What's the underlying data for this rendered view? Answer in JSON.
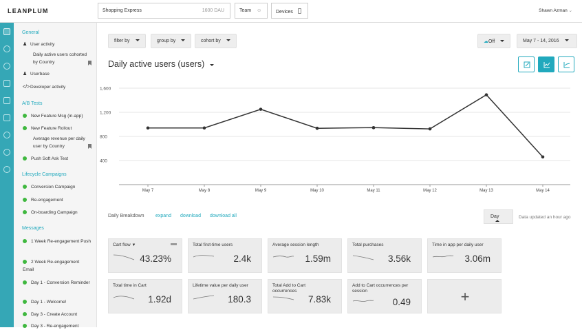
{
  "topbar": {
    "logo": "LEANPLUM",
    "app_name": "Shopping Express",
    "app_dau": "1600 DAU",
    "team_label": "Team",
    "devices_label": "Devices",
    "user_name": "Shawn Azman"
  },
  "sidebar": {
    "general": "General",
    "user_activity": "User activity",
    "user_activity_sub": "Daily active users cohorted by Country",
    "userbase": "Userbase",
    "developer_activity": "Developer activity",
    "ab_tests": "A/B Tests",
    "ab_items": [
      "New Feature Msg (in-app)",
      "New Feature Rollout"
    ],
    "ab_sub": "Average revenue per daily user by Country",
    "push_soft": "Push Soft Ask Test",
    "lifecycle": "Lifecycle Campaigns",
    "lifecycle_items": [
      "Conversion Campaign",
      "Re-engagement",
      "On-boarding Campaign"
    ],
    "messages": "Messages",
    "message_items": [
      "1 Week Re-engagement Push",
      "2 Week Re-engagement Email",
      "Day 1 - Conversion Reminder",
      "Day 1 - Welcome!",
      "Day 3 - Create Account",
      "Day 3 - Re-engagement"
    ]
  },
  "filters": {
    "filter_by": "filter by",
    "group_by": "group by",
    "cohort_by": "cohort by",
    "off_label": "Off",
    "date_range": "May 7 - 14, 2016"
  },
  "page_title": "Daily active users (users)",
  "chart_data": {
    "type": "line",
    "title": "Daily active users (users)",
    "categories": [
      "May 7",
      "May 8",
      "May 9",
      "May 10",
      "May 11",
      "May 12",
      "May 13",
      "May 14"
    ],
    "values": [
      940,
      940,
      1250,
      935,
      945,
      925,
      1490,
      460
    ],
    "yticks": [
      "1,600",
      "1,200",
      "800",
      "400"
    ],
    "ylim": [
      0,
      1600
    ],
    "grid": true,
    "color": "#333333"
  },
  "breakdown": {
    "label": "Daily Breakdown",
    "expand": "expand",
    "download": "download",
    "download_all": "download all",
    "day_label": "Day",
    "updated": "Data updated an hour ago"
  },
  "cards": [
    {
      "label": "Cart flow",
      "value": "43.23%"
    },
    {
      "label": "Total first-time users",
      "value": "2.4k"
    },
    {
      "label": "Average session length",
      "value": "1.59m"
    },
    {
      "label": "Total purchases",
      "value": "3.56k"
    },
    {
      "label": "Time in app per daily user",
      "value": "3.06m"
    },
    {
      "label": "Total time in Cart",
      "value": "1.92d"
    },
    {
      "label": "Lifetime value per daily user",
      "value": "180.3"
    },
    {
      "label": "Total Add to Cart occurrences",
      "value": "7.83k"
    },
    {
      "label": "Add to Cart occurrences per session",
      "value": "0.49"
    }
  ],
  "add_card": "+",
  "colors": {
    "accent": "#21a9bd",
    "rail": "#35a7b6",
    "green": "#3fb83f"
  }
}
